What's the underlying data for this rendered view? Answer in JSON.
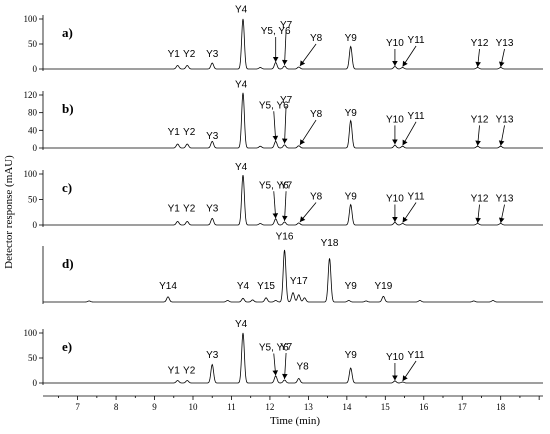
{
  "chart_data": {
    "type": "line",
    "xlabel": "Time (min)",
    "ylabel": "Detector response (mAU)",
    "xlim": [
      6.1,
      19.1
    ],
    "x_ticks": [
      7,
      8,
      9,
      10,
      11,
      12,
      13,
      14,
      15,
      16,
      17,
      18
    ],
    "panels": [
      {
        "letter": "a)",
        "ylim": [
          0,
          100
        ],
        "y_ticks": [
          0,
          50,
          100
        ],
        "peaks": [
          {
            "t": 9.6,
            "h": 7
          },
          {
            "t": 9.85,
            "h": 7
          },
          {
            "t": 10.5,
            "h": 12
          },
          {
            "t": 11.3,
            "h": 100
          },
          {
            "t": 11.75,
            "h": 3
          },
          {
            "t": 12.15,
            "h": 13
          },
          {
            "t": 12.38,
            "h": 6
          },
          {
            "t": 12.75,
            "h": 4
          },
          {
            "t": 14.1,
            "h": 45
          },
          {
            "t": 15.25,
            "h": 5
          },
          {
            "t": 15.45,
            "h": 3
          },
          {
            "t": 17.4,
            "h": 3
          },
          {
            "t": 18.0,
            "h": 3
          }
        ],
        "labels": [
          {
            "text": "Y1",
            "t": 9.5,
            "h": 24
          },
          {
            "text": "Y2",
            "t": 9.9,
            "h": 24
          },
          {
            "text": "Y3",
            "t": 10.5,
            "h": 24
          },
          {
            "text": "Y4",
            "t": 11.25,
            "h": 113
          },
          {
            "text": "Y5, Y6",
            "t": 12.15,
            "h": 70,
            "arrow_to": [
              12.15,
              14
            ]
          },
          {
            "text": "Y7",
            "t": 12.42,
            "h": 82,
            "arrow_to": [
              12.38,
              8
            ]
          },
          {
            "text": "Y8",
            "t": 13.2,
            "h": 56,
            "arrow_to": [
              12.78,
              6
            ]
          },
          {
            "text": "Y9",
            "t": 14.1,
            "h": 56
          },
          {
            "text": "Y10",
            "t": 15.25,
            "h": 46,
            "arrow_to": [
              15.25,
              6
            ]
          },
          {
            "text": "Y11",
            "t": 15.8,
            "h": 52,
            "arrow_to": [
              15.45,
              5
            ]
          },
          {
            "text": "Y12",
            "t": 17.45,
            "h": 46,
            "arrow_to": [
              17.4,
              4
            ]
          },
          {
            "text": "Y13",
            "t": 18.1,
            "h": 46,
            "arrow_to": [
              18.0,
              4
            ]
          }
        ]
      },
      {
        "letter": "b)",
        "ylim": [
          0,
          120
        ],
        "y_ticks": [
          0,
          40,
          80,
          120
        ],
        "peaks": [
          {
            "t": 9.6,
            "h": 9
          },
          {
            "t": 9.85,
            "h": 9
          },
          {
            "t": 10.5,
            "h": 15
          },
          {
            "t": 11.3,
            "h": 125
          },
          {
            "t": 11.75,
            "h": 4
          },
          {
            "t": 12.15,
            "h": 15
          },
          {
            "t": 12.38,
            "h": 7
          },
          {
            "t": 12.75,
            "h": 5
          },
          {
            "t": 14.1,
            "h": 62
          },
          {
            "t": 15.25,
            "h": 6
          },
          {
            "t": 15.45,
            "h": 4
          },
          {
            "t": 17.4,
            "h": 4
          },
          {
            "t": 18.0,
            "h": 4
          }
        ],
        "labels": [
          {
            "text": "Y1",
            "t": 9.5,
            "h": 30
          },
          {
            "text": "Y2",
            "t": 9.9,
            "h": 30
          },
          {
            "text": "Y3",
            "t": 10.5,
            "h": 20
          },
          {
            "text": "Y4",
            "t": 11.25,
            "h": 137
          },
          {
            "text": "Y5, Y6",
            "t": 12.1,
            "h": 90,
            "arrow_to": [
              12.15,
              16
            ]
          },
          {
            "text": "Y7",
            "t": 12.42,
            "h": 102,
            "arrow_to": [
              12.38,
              10
            ]
          },
          {
            "text": "Y8",
            "t": 13.2,
            "h": 70,
            "arrow_to": [
              12.78,
              7
            ]
          },
          {
            "text": "Y9",
            "t": 14.1,
            "h": 72
          },
          {
            "text": "Y10",
            "t": 15.25,
            "h": 58,
            "arrow_to": [
              15.25,
              8
            ]
          },
          {
            "text": "Y11",
            "t": 15.8,
            "h": 66,
            "arrow_to": [
              15.45,
              6
            ]
          },
          {
            "text": "Y12",
            "t": 17.45,
            "h": 58,
            "arrow_to": [
              17.4,
              5
            ]
          },
          {
            "text": "Y13",
            "t": 18.1,
            "h": 58,
            "arrow_to": [
              18.0,
              5
            ]
          }
        ]
      },
      {
        "letter": "c)",
        "ylim": [
          0,
          100
        ],
        "y_ticks": [
          0,
          50,
          100
        ],
        "peaks": [
          {
            "t": 9.6,
            "h": 7
          },
          {
            "t": 9.85,
            "h": 7
          },
          {
            "t": 10.5,
            "h": 13
          },
          {
            "t": 11.3,
            "h": 98
          },
          {
            "t": 11.75,
            "h": 3
          },
          {
            "t": 12.15,
            "h": 12
          },
          {
            "t": 12.38,
            "h": 6
          },
          {
            "t": 12.75,
            "h": 4
          },
          {
            "t": 14.1,
            "h": 40
          },
          {
            "t": 15.25,
            "h": 5
          },
          {
            "t": 15.45,
            "h": 3
          },
          {
            "t": 17.4,
            "h": 3
          },
          {
            "t": 18.0,
            "h": 3
          }
        ],
        "labels": [
          {
            "text": "Y1",
            "t": 9.5,
            "h": 26
          },
          {
            "text": "Y2",
            "t": 9.9,
            "h": 26
          },
          {
            "text": "Y3",
            "t": 10.5,
            "h": 26
          },
          {
            "text": "Y4",
            "t": 11.25,
            "h": 108
          },
          {
            "text": "Y5, Y6",
            "t": 12.1,
            "h": 72,
            "arrow_to": [
              12.15,
              13
            ]
          },
          {
            "text": "Y7",
            "t": 12.42,
            "h": 72,
            "arrow_to": [
              12.38,
              8
            ]
          },
          {
            "text": "Y8",
            "t": 13.2,
            "h": 50,
            "arrow_to": [
              12.78,
              6
            ]
          },
          {
            "text": "Y9",
            "t": 14.1,
            "h": 50
          },
          {
            "text": "Y10",
            "t": 15.25,
            "h": 46,
            "arrow_to": [
              15.25,
              6
            ]
          },
          {
            "text": "Y11",
            "t": 15.8,
            "h": 50,
            "arrow_to": [
              15.45,
              5
            ]
          },
          {
            "text": "Y12",
            "t": 17.45,
            "h": 46,
            "arrow_to": [
              17.4,
              4
            ]
          },
          {
            "text": "Y13",
            "t": 18.1,
            "h": 46,
            "arrow_to": [
              18.0,
              4
            ]
          }
        ]
      },
      {
        "letter": "d)",
        "ylim": [
          0,
          100
        ],
        "y_ticks": [],
        "peaks": [
          {
            "t": 7.3,
            "h": 2
          },
          {
            "t": 9.35,
            "h": 10
          },
          {
            "t": 10.9,
            "h": 3
          },
          {
            "t": 11.3,
            "h": 7
          },
          {
            "t": 11.55,
            "h": 4
          },
          {
            "t": 11.9,
            "h": 8
          },
          {
            "t": 12.15,
            "h": 3
          },
          {
            "t": 12.38,
            "h": 100
          },
          {
            "t": 12.6,
            "h": 18
          },
          {
            "t": 12.75,
            "h": 14
          },
          {
            "t": 12.9,
            "h": 8
          },
          {
            "t": 13.55,
            "h": 84
          },
          {
            "t": 14.05,
            "h": 3
          },
          {
            "t": 14.5,
            "h": 2
          },
          {
            "t": 14.95,
            "h": 11
          },
          {
            "t": 15.9,
            "h": 3
          },
          {
            "t": 17.3,
            "h": 2
          },
          {
            "t": 17.8,
            "h": 3
          }
        ],
        "labels": [
          {
            "text": "Y14",
            "t": 9.35,
            "h": 25
          },
          {
            "text": "Y4",
            "t": 11.3,
            "h": 25
          },
          {
            "text": "Y15",
            "t": 11.9,
            "h": 25
          },
          {
            "text": "Y16",
            "t": 12.38,
            "h": 120
          },
          {
            "text": "Y17",
            "t": 12.75,
            "h": 35
          },
          {
            "text": "Y18",
            "t": 13.55,
            "h": 108
          },
          {
            "text": "Y9",
            "t": 14.1,
            "h": 25
          },
          {
            "text": "Y19",
            "t": 14.95,
            "h": 25
          }
        ]
      },
      {
        "letter": "e)",
        "ylim": [
          0,
          100
        ],
        "y_ticks": [
          0,
          50,
          100
        ],
        "peaks": [
          {
            "t": 9.6,
            "h": 5
          },
          {
            "t": 9.85,
            "h": 5
          },
          {
            "t": 10.5,
            "h": 37
          },
          {
            "t": 11.3,
            "h": 100
          },
          {
            "t": 12.15,
            "h": 14
          },
          {
            "t": 12.38,
            "h": 6
          },
          {
            "t": 12.75,
            "h": 9
          },
          {
            "t": 14.1,
            "h": 30
          },
          {
            "t": 15.25,
            "h": 4
          },
          {
            "t": 15.45,
            "h": 2
          }
        ],
        "labels": [
          {
            "text": "Y1",
            "t": 9.5,
            "h": 19
          },
          {
            "text": "Y2",
            "t": 9.9,
            "h": 19
          },
          {
            "text": "Y3",
            "t": 10.5,
            "h": 50
          },
          {
            "text": "Y4",
            "t": 11.25,
            "h": 112
          },
          {
            "text": "Y5, Y6",
            "t": 12.1,
            "h": 65,
            "arrow_to": [
              12.15,
              15
            ]
          },
          {
            "text": "Y7",
            "t": 12.42,
            "h": 66,
            "arrow_to": [
              12.38,
              8
            ]
          },
          {
            "text": "Y8",
            "t": 12.85,
            "h": 27
          },
          {
            "text": "Y9",
            "t": 14.1,
            "h": 50
          },
          {
            "text": "Y10",
            "t": 15.25,
            "h": 46,
            "arrow_to": [
              15.25,
              5
            ]
          },
          {
            "text": "Y11",
            "t": 15.8,
            "h": 50,
            "arrow_to": [
              15.45,
              4
            ]
          }
        ]
      }
    ]
  }
}
